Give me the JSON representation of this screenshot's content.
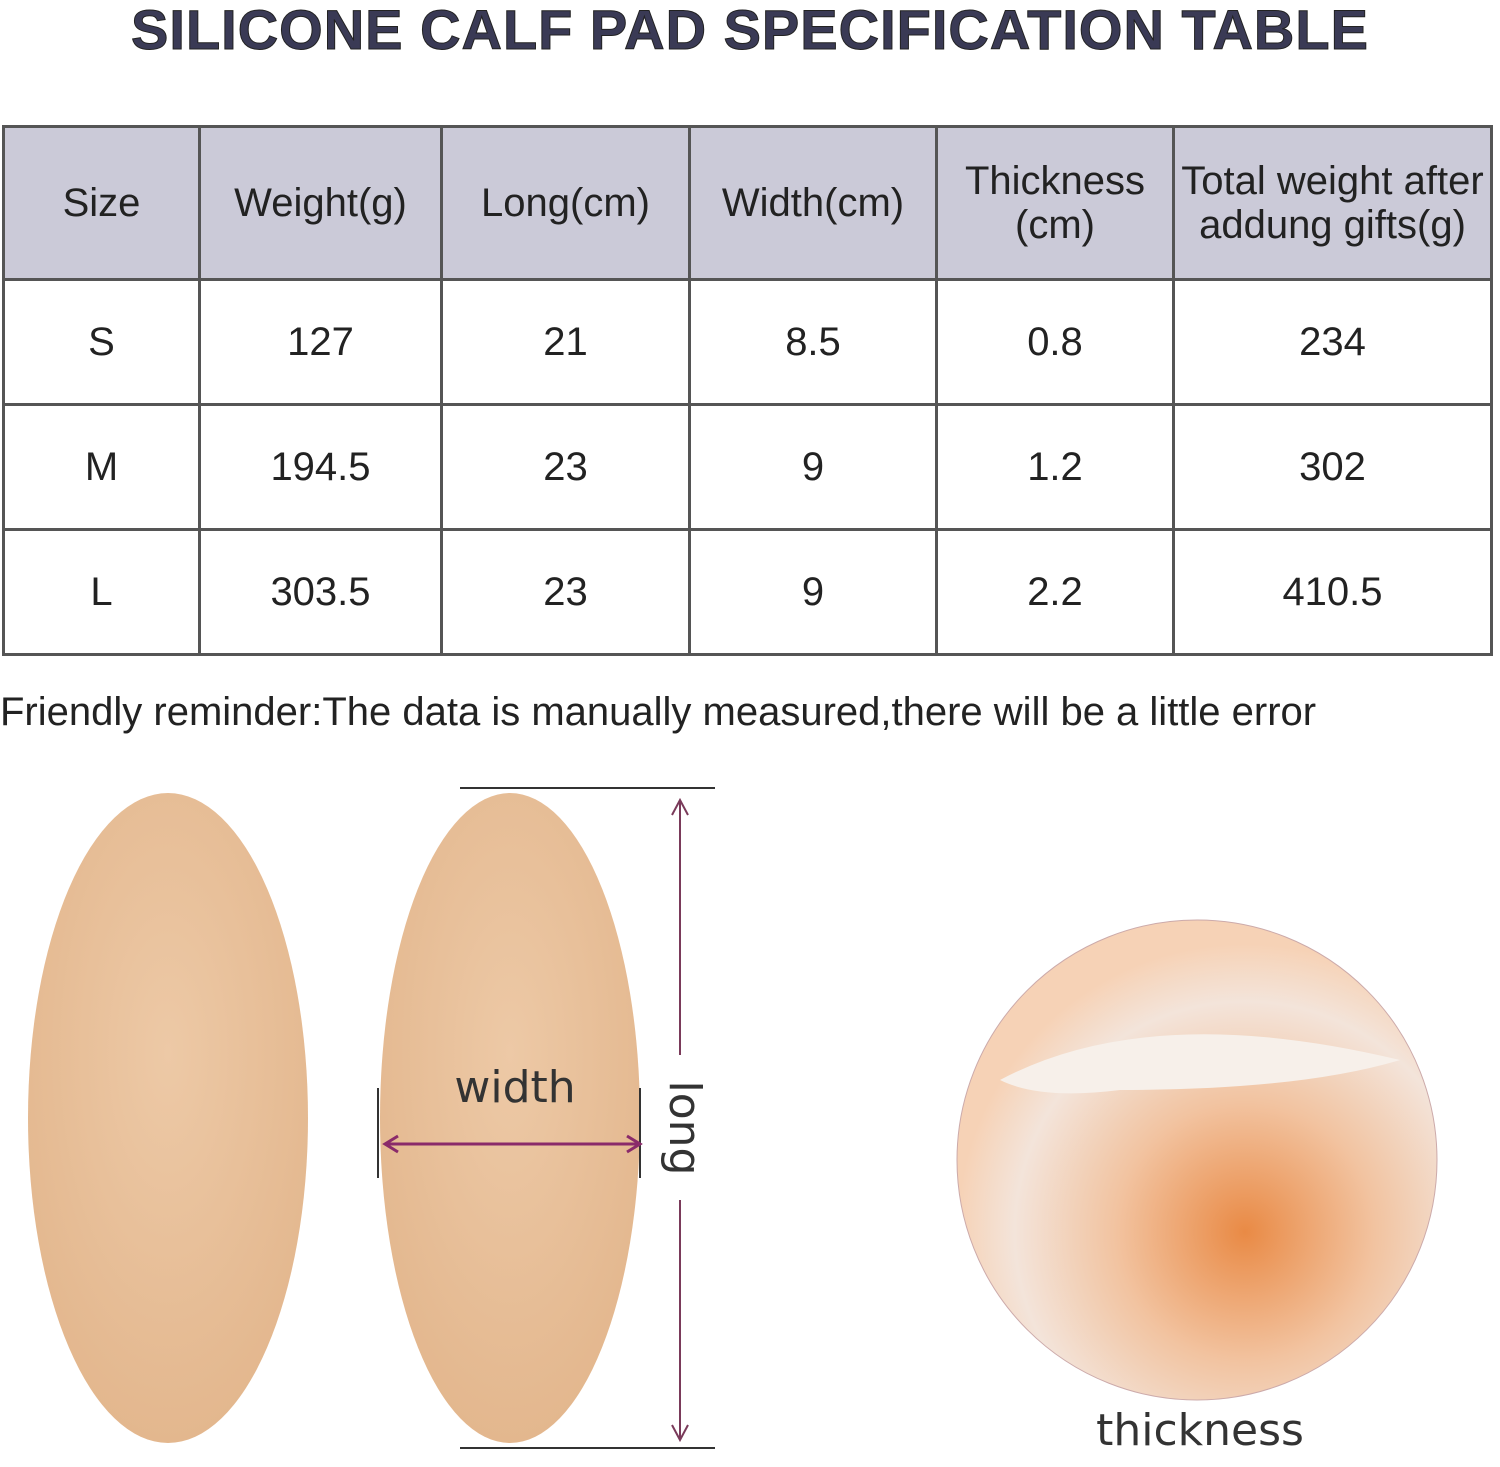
{
  "header": {
    "title": "SILICONE CALF PAD SPECIFICATION TABLE"
  },
  "table": {
    "columns": [
      "Size",
      "Weight(g)",
      "Long(cm)",
      "Width(cm)",
      "Thickness (cm)",
      "Total weight after addung gifts(g)"
    ],
    "rows": [
      [
        "S",
        "127",
        "21",
        "8.5",
        "0.8",
        "234"
      ],
      [
        "M",
        "194.5",
        "23",
        "9",
        "1.2",
        "302"
      ],
      [
        "L",
        "303.5",
        "23",
        "9",
        "2.2",
        "410.5"
      ]
    ]
  },
  "reminder": "Friendly reminder:The data is manually measured,there will be a little error",
  "labels": {
    "width": "width",
    "long": "long",
    "thickness": "thickness"
  }
}
